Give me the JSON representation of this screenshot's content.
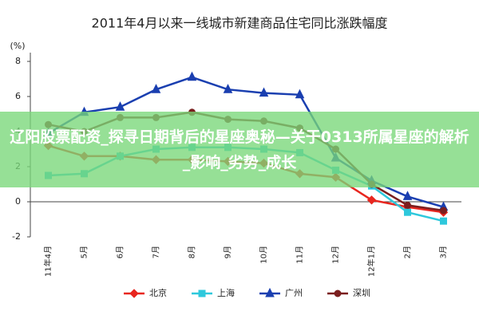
{
  "chart_data": {
    "type": "line",
    "title": "2011年4月以来一线城市新建商品住宅同比涨跌幅度",
    "y_label": "(%)",
    "categories": [
      "11年4月",
      "5月",
      "6月",
      "7月",
      "8月",
      "9月",
      "10月",
      "11月",
      "12月",
      "12年1月",
      "2月",
      "3月"
    ],
    "ylim": [
      -2,
      8.5
    ],
    "yticks": [
      -2,
      0,
      2,
      4,
      6,
      8
    ],
    "legend": "bottom",
    "series": [
      {
        "name": "北京",
        "color": "#e8261f",
        "marker": "diamond",
        "values": [
          3.2,
          2.6,
          2.6,
          2.4,
          2.4,
          2.3,
          2.2,
          1.6,
          1.4,
          0.1,
          -0.3,
          -0.6
        ]
      },
      {
        "name": "上海",
        "color": "#2ec8dc",
        "marker": "square",
        "values": [
          1.5,
          1.6,
          2.6,
          3.0,
          3.1,
          3.1,
          3.0,
          2.8,
          1.8,
          0.9,
          -0.6,
          -1.1
        ]
      },
      {
        "name": "广州",
        "color": "#1a3fb0",
        "marker": "triangle",
        "values": [
          3.9,
          5.1,
          5.4,
          6.4,
          7.1,
          6.4,
          6.2,
          6.1,
          2.5,
          1.2,
          0.3,
          -0.3
        ]
      },
      {
        "name": "深圳",
        "color": "#7b1f1f",
        "marker": "circle",
        "values": [
          4.4,
          4.0,
          4.8,
          4.8,
          5.1,
          4.7,
          4.6,
          4.2,
          3.0,
          1.0,
          -0.2,
          -0.5
        ]
      }
    ]
  },
  "banner": {
    "text": "辽阳股票配资_探寻日期背后的星座奥秘—关于0313所属星座的解析_影响_劣势_成长"
  }
}
